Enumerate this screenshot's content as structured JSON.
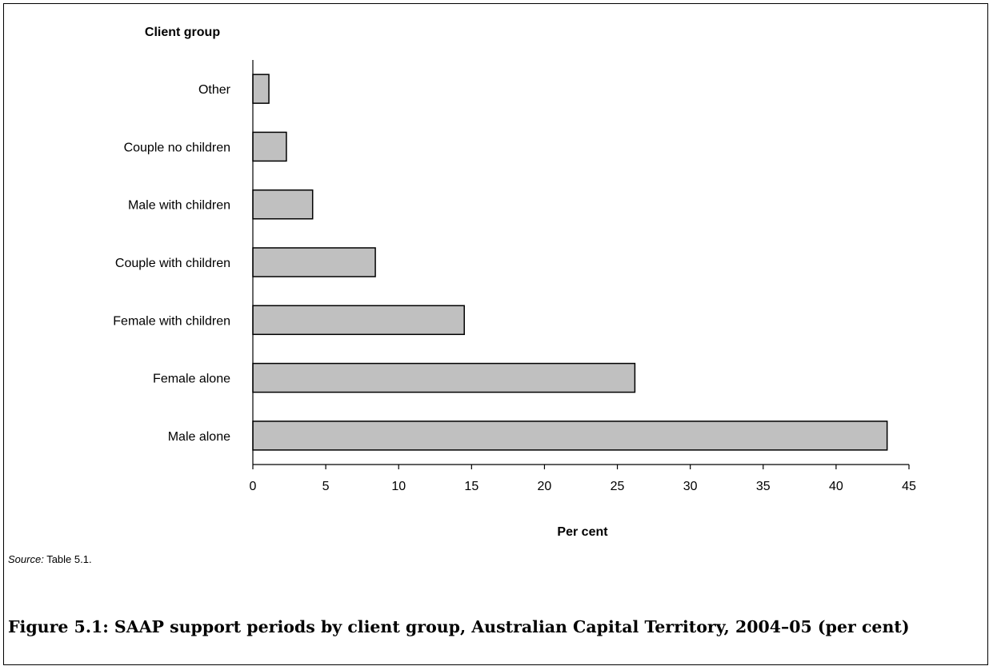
{
  "chart_data": {
    "type": "bar",
    "orientation": "horizontal",
    "title": "Client group",
    "xlabel": "Per cent",
    "categories": [
      "Other",
      "Couple no children",
      "Male with children",
      "Couple with children",
      "Female with children",
      "Female alone",
      "Male alone"
    ],
    "values": [
      1.1,
      2.3,
      4.1,
      8.4,
      14.5,
      26.2,
      43.5
    ],
    "xlim": [
      0,
      45
    ],
    "xticks": [
      0,
      5,
      10,
      15,
      20,
      25,
      30,
      35,
      40,
      45
    ],
    "xtick_labels": [
      "0",
      "5",
      "10",
      "15",
      "20",
      "25",
      "30",
      "35",
      "40",
      "45"
    ],
    "bar_color": "#c0c0c0",
    "bar_edge_color": "#000000",
    "grid": false,
    "legend": "none"
  },
  "source": {
    "label": "Source:",
    "text": " Table 5.1."
  },
  "caption": "Figure 5.1: SAAP support periods by client group, Australian Capital Territory, 2004–05 (per cent)"
}
